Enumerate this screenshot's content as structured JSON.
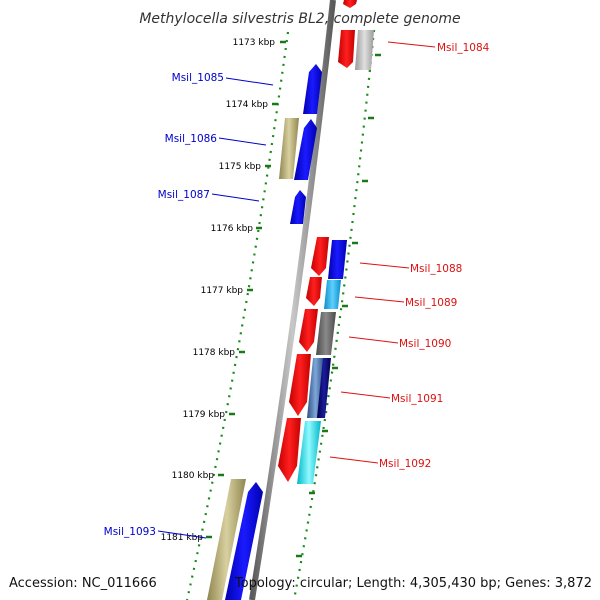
{
  "title": "Methylocella silvestris BL2, complete genome",
  "footer": {
    "accession": "Accession: NC_011666",
    "stats": "Topology: circular; Length: 4,305,430 bp; Genes: 3,872"
  },
  "ticks": [
    "1173 kbp",
    "1174 kbp",
    "1175 kbp",
    "1176 kbp",
    "1177 kbp",
    "1178 kbp",
    "1179 kbp",
    "1180 kbp",
    "1181 kbp"
  ],
  "genes": [
    {
      "label": "Msil_1084",
      "strand": "reverse",
      "color": "#dd1111"
    },
    {
      "label": "Msil_1085",
      "strand": "forward",
      "color": "#0000cc"
    },
    {
      "label": "Msil_1086",
      "strand": "forward",
      "color": "#0000cc"
    },
    {
      "label": "Msil_1087",
      "strand": "forward",
      "color": "#0000cc"
    },
    {
      "label": "Msil_1088",
      "strand": "reverse",
      "color": "#dd1111"
    },
    {
      "label": "Msil_1089",
      "strand": "reverse",
      "color": "#dd1111"
    },
    {
      "label": "Msil_1090",
      "strand": "reverse",
      "color": "#dd1111"
    },
    {
      "label": "Msil_1091",
      "strand": "reverse",
      "color": "#dd1111"
    },
    {
      "label": "Msil_1092",
      "strand": "reverse",
      "color": "#dd1111"
    },
    {
      "label": "Msil_1093",
      "strand": "forward",
      "color": "#0000cc"
    }
  ],
  "colors": {
    "backbone": "#888888",
    "tick_mark": "#1a7a1a",
    "forward_label": "#0000cc",
    "reverse_label": "#dd1111",
    "cds_forward": "#0000ee",
    "cds_reverse": "#ee0000",
    "feature_tan": "#b8ae6e",
    "feature_grey": "#bdbdbd",
    "feature_darkgrey": "#6e6e6e",
    "feature_skyblue": "#29b6ee",
    "feature_navy": "#0a0a70",
    "feature_steel": "#4a76b0",
    "feature_cyan": "#22e4ee"
  }
}
